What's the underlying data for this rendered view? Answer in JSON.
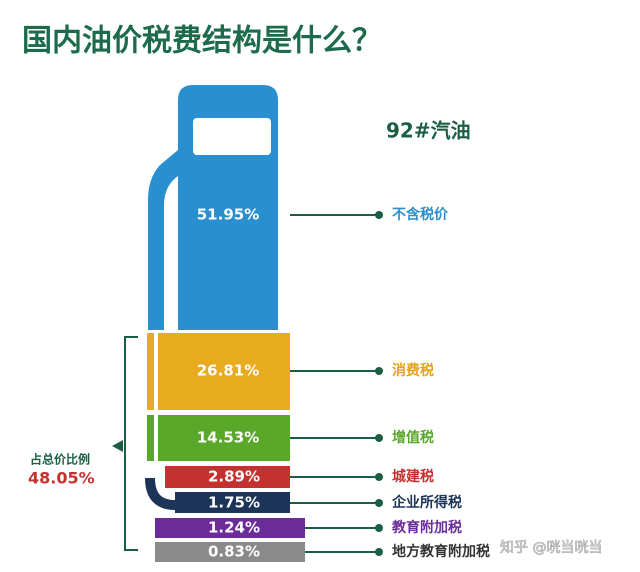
{
  "header": {
    "title": "国内油价税费结构是什么？",
    "subtitle": "92#汽油"
  },
  "segments": [
    {
      "value": "51.95%",
      "label": "不含税价"
    },
    {
      "value": "26.81%",
      "label": "消费税"
    },
    {
      "value": "14.53%",
      "label": "增值税"
    },
    {
      "value": "2.89%",
      "label": "城建税"
    },
    {
      "value": "1.75%",
      "label": "企业所得税"
    },
    {
      "value": "1.24%",
      "label": "教育附加税"
    },
    {
      "value": "0.83%",
      "label": "地方教育附加税"
    }
  ],
  "share": {
    "label": "占总价比例",
    "value": "48.05%"
  },
  "watermark": "知乎 @咣当咣当"
}
